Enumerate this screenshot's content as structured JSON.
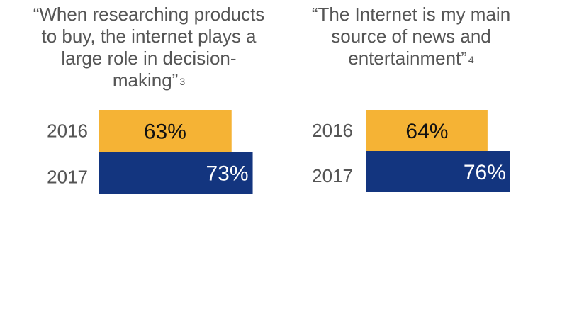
{
  "chart_data": [
    {
      "type": "bar",
      "orientation": "horizontal",
      "title": "“When researching products to buy, the internet plays a large role in decision-making”",
      "footnote": "3",
      "categories": [
        "2016",
        "2017"
      ],
      "values": [
        63,
        73
      ],
      "value_labels": [
        "63%",
        "73%"
      ],
      "colors": [
        "#f5b335",
        "#13357f"
      ],
      "label_colors": [
        "#111111",
        "#ffffff"
      ],
      "xlim": [
        0,
        100
      ]
    },
    {
      "type": "bar",
      "orientation": "horizontal",
      "title": "“The Internet is my main source of news and entertainment”",
      "footnote": "4",
      "categories": [
        "2016",
        "2017"
      ],
      "values": [
        64,
        76
      ],
      "value_labels": [
        "64%",
        "76%"
      ],
      "colors": [
        "#f5b335",
        "#13357f"
      ],
      "label_colors": [
        "#111111",
        "#ffffff"
      ],
      "xlim": [
        0,
        100
      ]
    }
  ]
}
